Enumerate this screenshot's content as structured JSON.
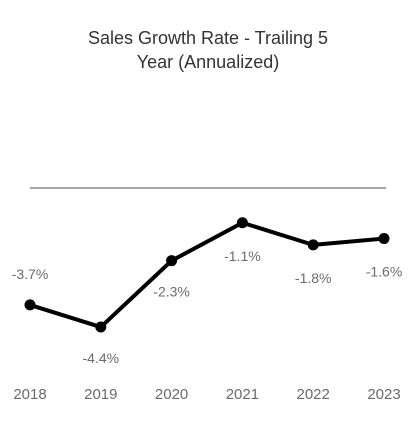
{
  "chart_data": {
    "type": "line",
    "title_line1": "Sales Growth Rate - Trailing 5",
    "title_line2": "Year (Annualized)",
    "categories": [
      "2018",
      "2019",
      "2020",
      "2021",
      "2022",
      "2023"
    ],
    "values": [
      -3.7,
      -4.4,
      -2.3,
      -1.1,
      -1.8,
      -1.6
    ],
    "data_labels": [
      "-3.7%",
      "-4.4%",
      "-2.3%",
      "-1.1%",
      "-1.8%",
      "-1.6%"
    ],
    "reference_line": 0,
    "xlabel": "",
    "ylabel": "",
    "grid": false,
    "colors": {
      "line": "#000000",
      "reference": "#8c8c8c",
      "text": "#6b6b6b",
      "title": "#333333"
    }
  }
}
